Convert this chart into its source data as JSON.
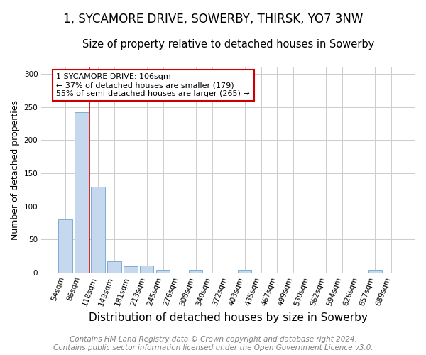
{
  "title": "1, SYCAMORE DRIVE, SOWERBY, THIRSK, YO7 3NW",
  "subtitle": "Size of property relative to detached houses in Sowerby",
  "xlabel": "Distribution of detached houses by size in Sowerby",
  "ylabel": "Number of detached properties",
  "categories": [
    "54sqm",
    "86sqm",
    "118sqm",
    "149sqm",
    "181sqm",
    "213sqm",
    "245sqm",
    "276sqm",
    "308sqm",
    "340sqm",
    "372sqm",
    "403sqm",
    "435sqm",
    "467sqm",
    "499sqm",
    "530sqm",
    "562sqm",
    "594sqm",
    "626sqm",
    "657sqm",
    "689sqm"
  ],
  "values": [
    80,
    242,
    130,
    17,
    9,
    10,
    4,
    0,
    4,
    0,
    0,
    4,
    0,
    0,
    0,
    0,
    0,
    0,
    0,
    4,
    0
  ],
  "bar_color": "#c5d8ee",
  "bar_edge_color": "#7bafd4",
  "vline_x": 1.5,
  "vline_color": "#cc0000",
  "annotation_text": "1 SYCAMORE DRIVE: 106sqm\n← 37% of detached houses are smaller (179)\n55% of semi-detached houses are larger (265) →",
  "annotation_box_color": "white",
  "annotation_box_edge_color": "#cc0000",
  "ylim": [
    0,
    310
  ],
  "yticks": [
    0,
    50,
    100,
    150,
    200,
    250,
    300
  ],
  "footer_line1": "Contains HM Land Registry data © Crown copyright and database right 2024.",
  "footer_line2": "Contains public sector information licensed under the Open Government Licence v3.0.",
  "bg_color": "#ffffff",
  "title_fontsize": 12,
  "subtitle_fontsize": 10.5,
  "xlabel_fontsize": 11,
  "ylabel_fontsize": 9,
  "footer_fontsize": 7.5
}
